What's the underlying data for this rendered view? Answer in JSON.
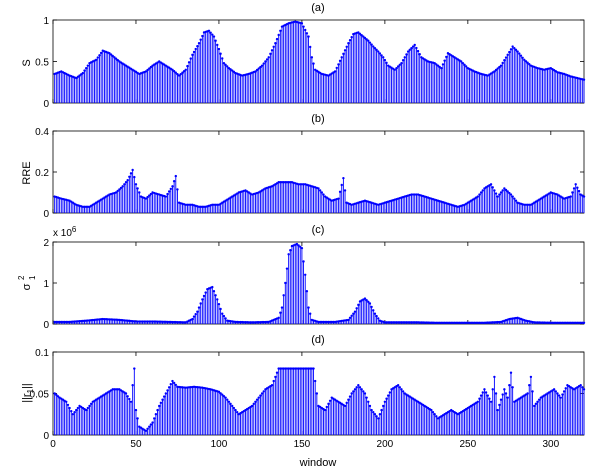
{
  "figure": {
    "xlabel": "window",
    "xlim": [
      0,
      320
    ],
    "xticks": [
      0,
      50,
      100,
      150,
      200,
      250,
      300
    ],
    "stem_color": "#0000ff"
  },
  "chart_data": [
    {
      "type": "stem",
      "title": "(a)",
      "ylabel": "S",
      "ylim": [
        0,
        1
      ],
      "yticks": [
        0,
        0.5,
        1
      ],
      "anchors": [
        [
          1,
          0.35
        ],
        [
          5,
          0.38
        ],
        [
          10,
          0.33
        ],
        [
          14,
          0.3
        ],
        [
          18,
          0.36
        ],
        [
          22,
          0.48
        ],
        [
          26,
          0.52
        ],
        [
          30,
          0.63
        ],
        [
          34,
          0.6
        ],
        [
          37,
          0.55
        ],
        [
          40,
          0.5
        ],
        [
          44,
          0.45
        ],
        [
          48,
          0.4
        ],
        [
          52,
          0.35
        ],
        [
          56,
          0.38
        ],
        [
          60,
          0.45
        ],
        [
          64,
          0.5
        ],
        [
          68,
          0.45
        ],
        [
          72,
          0.4
        ],
        [
          76,
          0.33
        ],
        [
          80,
          0.4
        ],
        [
          84,
          0.58
        ],
        [
          88,
          0.72
        ],
        [
          91,
          0.85
        ],
        [
          94,
          0.87
        ],
        [
          97,
          0.8
        ],
        [
          100,
          0.65
        ],
        [
          103,
          0.48
        ],
        [
          106,
          0.42
        ],
        [
          110,
          0.36
        ],
        [
          114,
          0.33
        ],
        [
          118,
          0.35
        ],
        [
          122,
          0.38
        ],
        [
          126,
          0.45
        ],
        [
          130,
          0.55
        ],
        [
          134,
          0.72
        ],
        [
          138,
          0.92
        ],
        [
          142,
          0.96
        ],
        [
          146,
          0.98
        ],
        [
          150,
          0.96
        ],
        [
          154,
          0.8
        ],
        [
          156,
          0.55
        ],
        [
          158,
          0.4
        ],
        [
          162,
          0.35
        ],
        [
          166,
          0.33
        ],
        [
          170,
          0.38
        ],
        [
          174,
          0.55
        ],
        [
          178,
          0.72
        ],
        [
          181,
          0.83
        ],
        [
          184,
          0.85
        ],
        [
          187,
          0.8
        ],
        [
          190,
          0.75
        ],
        [
          193,
          0.68
        ],
        [
          196,
          0.62
        ],
        [
          199,
          0.55
        ],
        [
          202,
          0.45
        ],
        [
          206,
          0.4
        ],
        [
          210,
          0.48
        ],
        [
          214,
          0.62
        ],
        [
          218,
          0.7
        ],
        [
          222,
          0.55
        ],
        [
          226,
          0.5
        ],
        [
          230,
          0.48
        ],
        [
          234,
          0.42
        ],
        [
          238,
          0.6
        ],
        [
          242,
          0.55
        ],
        [
          246,
          0.5
        ],
        [
          250,
          0.42
        ],
        [
          254,
          0.38
        ],
        [
          258,
          0.35
        ],
        [
          262,
          0.33
        ],
        [
          266,
          0.38
        ],
        [
          270,
          0.45
        ],
        [
          274,
          0.58
        ],
        [
          277,
          0.68
        ],
        [
          280,
          0.62
        ],
        [
          284,
          0.52
        ],
        [
          288,
          0.45
        ],
        [
          292,
          0.42
        ],
        [
          296,
          0.4
        ],
        [
          300,
          0.42
        ],
        [
          304,
          0.37
        ],
        [
          308,
          0.35
        ],
        [
          312,
          0.32
        ],
        [
          316,
          0.3
        ],
        [
          320,
          0.28
        ]
      ]
    },
    {
      "type": "stem",
      "title": "(b)",
      "ylabel": "RRE",
      "ylim": [
        0,
        0.4
      ],
      "yticks": [
        0,
        0.2,
        0.4
      ],
      "anchors": [
        [
          1,
          0.08
        ],
        [
          5,
          0.07
        ],
        [
          10,
          0.06
        ],
        [
          14,
          0.04
        ],
        [
          18,
          0.03
        ],
        [
          22,
          0.03
        ],
        [
          26,
          0.05
        ],
        [
          30,
          0.07
        ],
        [
          34,
          0.09
        ],
        [
          38,
          0.1
        ],
        [
          42,
          0.13
        ],
        [
          45,
          0.16
        ],
        [
          48,
          0.21
        ],
        [
          50,
          0.14
        ],
        [
          53,
          0.08
        ],
        [
          56,
          0.07
        ],
        [
          60,
          0.1
        ],
        [
          64,
          0.09
        ],
        [
          68,
          0.08
        ],
        [
          72,
          0.13
        ],
        [
          74,
          0.18
        ],
        [
          76,
          0.05
        ],
        [
          80,
          0.04
        ],
        [
          84,
          0.04
        ],
        [
          88,
          0.03
        ],
        [
          92,
          0.03
        ],
        [
          96,
          0.04
        ],
        [
          100,
          0.04
        ],
        [
          104,
          0.06
        ],
        [
          108,
          0.08
        ],
        [
          112,
          0.1
        ],
        [
          116,
          0.11
        ],
        [
          120,
          0.09
        ],
        [
          124,
          0.1
        ],
        [
          128,
          0.12
        ],
        [
          132,
          0.13
        ],
        [
          136,
          0.15
        ],
        [
          140,
          0.15
        ],
        [
          144,
          0.15
        ],
        [
          148,
          0.14
        ],
        [
          152,
          0.14
        ],
        [
          156,
          0.13
        ],
        [
          160,
          0.12
        ],
        [
          164,
          0.08
        ],
        [
          168,
          0.06
        ],
        [
          172,
          0.07
        ],
        [
          175,
          0.17
        ],
        [
          177,
          0.05
        ],
        [
          180,
          0.04
        ],
        [
          184,
          0.05
        ],
        [
          188,
          0.06
        ],
        [
          192,
          0.05
        ],
        [
          196,
          0.04
        ],
        [
          200,
          0.05
        ],
        [
          204,
          0.06
        ],
        [
          208,
          0.07
        ],
        [
          212,
          0.08
        ],
        [
          216,
          0.09
        ],
        [
          220,
          0.09
        ],
        [
          224,
          0.08
        ],
        [
          228,
          0.07
        ],
        [
          232,
          0.06
        ],
        [
          236,
          0.05
        ],
        [
          240,
          0.04
        ],
        [
          244,
          0.03
        ],
        [
          248,
          0.04
        ],
        [
          252,
          0.06
        ],
        [
          256,
          0.08
        ],
        [
          260,
          0.12
        ],
        [
          264,
          0.14
        ],
        [
          268,
          0.08
        ],
        [
          272,
          0.12
        ],
        [
          276,
          0.09
        ],
        [
          280,
          0.05
        ],
        [
          284,
          0.04
        ],
        [
          288,
          0.04
        ],
        [
          292,
          0.06
        ],
        [
          296,
          0.08
        ],
        [
          300,
          0.1
        ],
        [
          304,
          0.09
        ],
        [
          308,
          0.07
        ],
        [
          312,
          0.08
        ],
        [
          315,
          0.14
        ],
        [
          318,
          0.09
        ],
        [
          320,
          0.08
        ]
      ]
    },
    {
      "type": "stem",
      "title": "(c)",
      "ylabel": "σ",
      "ylabel_sup": "2",
      "ylabel_sub": "1",
      "scale_label": "x 10",
      "scale_exp": "6",
      "ylim": [
        0,
        2
      ],
      "yticks": [
        0,
        1,
        2
      ],
      "anchors": [
        [
          1,
          0.05
        ],
        [
          10,
          0.05
        ],
        [
          20,
          0.08
        ],
        [
          30,
          0.12
        ],
        [
          40,
          0.1
        ],
        [
          50,
          0.06
        ],
        [
          60,
          0.06
        ],
        [
          70,
          0.05
        ],
        [
          80,
          0.04
        ],
        [
          84,
          0.12
        ],
        [
          87,
          0.3
        ],
        [
          90,
          0.6
        ],
        [
          93,
          0.85
        ],
        [
          96,
          0.9
        ],
        [
          99,
          0.6
        ],
        [
          102,
          0.25
        ],
        [
          105,
          0.08
        ],
        [
          110,
          0.05
        ],
        [
          120,
          0.04
        ],
        [
          130,
          0.05
        ],
        [
          136,
          0.15
        ],
        [
          138,
          0.4
        ],
        [
          140,
          1.0
        ],
        [
          142,
          1.7
        ],
        [
          144,
          1.9
        ],
        [
          147,
          1.95
        ],
        [
          150,
          1.85
        ],
        [
          152,
          1.2
        ],
        [
          154,
          0.4
        ],
        [
          156,
          0.1
        ],
        [
          160,
          0.05
        ],
        [
          170,
          0.05
        ],
        [
          178,
          0.1
        ],
        [
          182,
          0.3
        ],
        [
          185,
          0.55
        ],
        [
          188,
          0.62
        ],
        [
          191,
          0.5
        ],
        [
          194,
          0.25
        ],
        [
          197,
          0.08
        ],
        [
          200,
          0.04
        ],
        [
          210,
          0.04
        ],
        [
          220,
          0.04
        ],
        [
          230,
          0.03
        ],
        [
          240,
          0.03
        ],
        [
          250,
          0.03
        ],
        [
          260,
          0.03
        ],
        [
          270,
          0.05
        ],
        [
          275,
          0.12
        ],
        [
          280,
          0.15
        ],
        [
          285,
          0.08
        ],
        [
          290,
          0.04
        ],
        [
          300,
          0.03
        ],
        [
          310,
          0.03
        ],
        [
          320,
          0.03
        ]
      ]
    },
    {
      "type": "stem",
      "title": "(d)",
      "ylabel": "||r",
      "ylabel_sub": "1",
      "ylabel_end": "||",
      "ylim": [
        0,
        0.1
      ],
      "yticks": [
        0,
        0.05,
        0.1
      ],
      "anchors": [
        [
          1,
          0.05
        ],
        [
          4,
          0.045
        ],
        [
          8,
          0.04
        ],
        [
          12,
          0.025
        ],
        [
          16,
          0.035
        ],
        [
          20,
          0.03
        ],
        [
          24,
          0.04
        ],
        [
          28,
          0.045
        ],
        [
          32,
          0.05
        ],
        [
          36,
          0.055
        ],
        [
          40,
          0.055
        ],
        [
          44,
          0.05
        ],
        [
          47,
          0.04
        ],
        [
          49,
          0.08
        ],
        [
          50,
          0.03
        ],
        [
          52,
          0.01
        ],
        [
          56,
          0.005
        ],
        [
          60,
          0.015
        ],
        [
          64,
          0.035
        ],
        [
          68,
          0.05
        ],
        [
          72,
          0.065
        ],
        [
          75,
          0.058
        ],
        [
          80,
          0.057
        ],
        [
          85,
          0.058
        ],
        [
          90,
          0.057
        ],
        [
          95,
          0.055
        ],
        [
          100,
          0.052
        ],
        [
          104,
          0.045
        ],
        [
          108,
          0.035
        ],
        [
          112,
          0.025
        ],
        [
          116,
          0.03
        ],
        [
          120,
          0.035
        ],
        [
          124,
          0.045
        ],
        [
          128,
          0.055
        ],
        [
          132,
          0.06
        ],
        [
          136,
          0.08
        ],
        [
          140,
          0.08
        ],
        [
          145,
          0.08
        ],
        [
          150,
          0.08
        ],
        [
          155,
          0.08
        ],
        [
          157,
          0.08
        ],
        [
          160,
          0.035
        ],
        [
          164,
          0.03
        ],
        [
          168,
          0.045
        ],
        [
          172,
          0.04
        ],
        [
          176,
          0.035
        ],
        [
          180,
          0.05
        ],
        [
          184,
          0.06
        ],
        [
          188,
          0.05
        ],
        [
          192,
          0.03
        ],
        [
          196,
          0.02
        ],
        [
          200,
          0.04
        ],
        [
          204,
          0.055
        ],
        [
          208,
          0.06
        ],
        [
          212,
          0.05
        ],
        [
          216,
          0.045
        ],
        [
          220,
          0.04
        ],
        [
          224,
          0.035
        ],
        [
          228,
          0.03
        ],
        [
          232,
          0.02
        ],
        [
          236,
          0.025
        ],
        [
          240,
          0.03
        ],
        [
          244,
          0.025
        ],
        [
          248,
          0.03
        ],
        [
          252,
          0.035
        ],
        [
          256,
          0.04
        ],
        [
          260,
          0.055
        ],
        [
          264,
          0.04
        ],
        [
          266,
          0.07
        ],
        [
          268,
          0.03
        ],
        [
          272,
          0.055
        ],
        [
          274,
          0.045
        ],
        [
          276,
          0.075
        ],
        [
          278,
          0.04
        ],
        [
          282,
          0.045
        ],
        [
          286,
          0.05
        ],
        [
          288,
          0.07
        ],
        [
          290,
          0.035
        ],
        [
          294,
          0.045
        ],
        [
          298,
          0.05
        ],
        [
          302,
          0.055
        ],
        [
          306,
          0.045
        ],
        [
          310,
          0.06
        ],
        [
          314,
          0.055
        ],
        [
          318,
          0.06
        ],
        [
          320,
          0.055
        ]
      ]
    }
  ]
}
